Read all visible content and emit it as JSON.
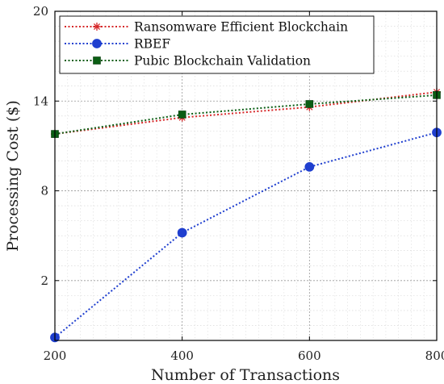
{
  "chart_data": {
    "type": "line",
    "xlabel": "Number of Transactions",
    "ylabel": "Processing Cost ($)",
    "x": [
      200,
      400,
      600,
      800
    ],
    "xlim": [
      200,
      800
    ],
    "ylim": [
      -2,
      20
    ],
    "xticks": [
      "200",
      "400",
      "600",
      "800"
    ],
    "yticks": [
      "20",
      "14",
      "8",
      "2"
    ],
    "ytick_values": [
      20,
      14,
      8,
      2
    ],
    "grid": true,
    "minor_grid": true,
    "legend_position": "top-left",
    "series": [
      {
        "name": "Ransomware Efficient Blockchain",
        "values": [
          11.8,
          12.9,
          13.6,
          14.6
        ],
        "color": "#d62728",
        "marker": "asterisk",
        "line_style": "dotted"
      },
      {
        "name": "RBEF",
        "values": [
          -1.8,
          5.2,
          9.6,
          11.9
        ],
        "color": "#1f3fcf",
        "marker": "circle",
        "line_style": "dotted"
      },
      {
        "name": "Pubic Blockchain Validation",
        "values": [
          11.8,
          13.1,
          13.8,
          14.4
        ],
        "color": "#0b5e14",
        "marker": "square",
        "line_style": "dotted"
      }
    ]
  }
}
